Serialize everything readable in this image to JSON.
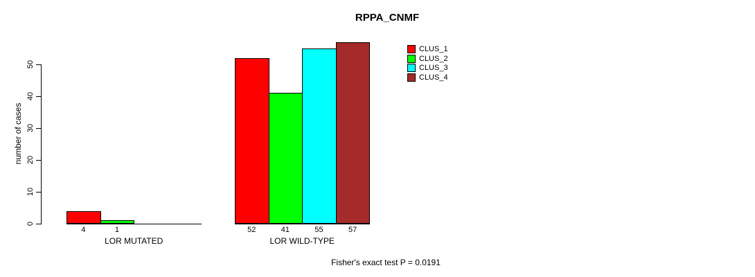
{
  "chart": {
    "title": "RPPA_CNMF",
    "ylabel": "number of cases",
    "footer": "Fisher's exact test P = 0.0191"
  },
  "chart_data": {
    "type": "bar",
    "title": "RPPA_CNMF",
    "xlabel": "",
    "ylabel": "number of cases",
    "ylim": [
      0,
      57
    ],
    "yticks": [
      0,
      10,
      20,
      30,
      40,
      50
    ],
    "grid": false,
    "legend_position": "top-right",
    "groups": [
      {
        "label": "LOR MUTATED",
        "values": [
          4,
          1,
          0,
          0
        ],
        "bar_labels": [
          "4",
          "1",
          "",
          ""
        ]
      },
      {
        "label": "LOR WILD-TYPE",
        "values": [
          52,
          41,
          55,
          57
        ],
        "bar_labels": [
          "52",
          "41",
          "55",
          "57"
        ]
      }
    ],
    "series": [
      {
        "name": "CLUS_1",
        "color": "#ff0000"
      },
      {
        "name": "CLUS_2",
        "color": "#00ff00"
      },
      {
        "name": "CLUS_3",
        "color": "#00ffff"
      },
      {
        "name": "CLUS_4",
        "color": "#a52a2a"
      }
    ],
    "annotation": "Fisher's exact test P = 0.0191",
    "axis_color": "#000000"
  }
}
